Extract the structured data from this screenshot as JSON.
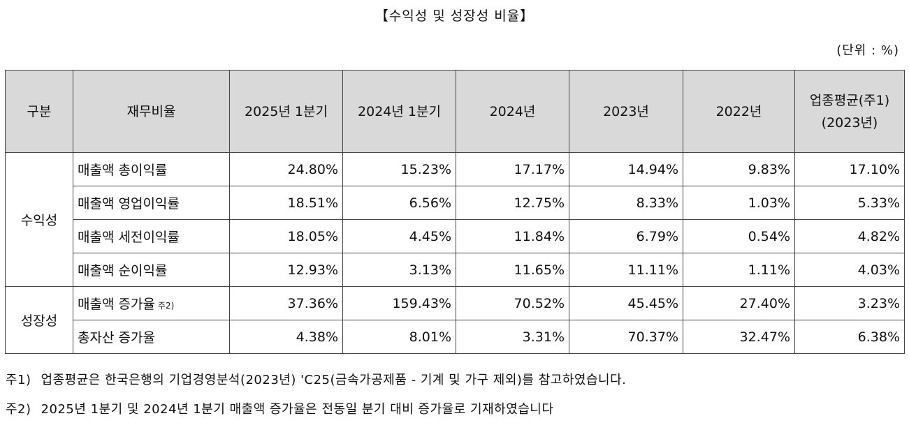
{
  "title": "【수익성 및 성장성 비율】",
  "unit": "(단위 : %)",
  "table": {
    "headers": {
      "group": "구분",
      "item": "재무비율",
      "cols": [
        "2025년 1분기",
        "2024년 1분기",
        "2024년",
        "2023년",
        "2022년"
      ],
      "industry_line1": "업종평균(주1)",
      "industry_line2": "(2023년)"
    },
    "groups": [
      {
        "name": "수익성",
        "rows": [
          {
            "label": "매출액 총이익률",
            "note": "",
            "values": [
              "24.80%",
              "15.23%",
              "17.17%",
              "14.94%",
              "9.83%",
              "17.10%"
            ]
          },
          {
            "label": "매출액 영업이익률",
            "note": "",
            "values": [
              "18.51%",
              "6.56%",
              "12.75%",
              "8.33%",
              "1.03%",
              "5.33%"
            ]
          },
          {
            "label": "매출액 세전이익률",
            "note": "",
            "values": [
              "18.05%",
              "4.45%",
              "11.84%",
              "6.79%",
              "0.54%",
              "4.82%"
            ]
          },
          {
            "label": "매출액 순이익률",
            "note": "",
            "values": [
              "12.93%",
              "3.13%",
              "11.65%",
              "11.11%",
              "1.11%",
              "4.03%"
            ]
          }
        ]
      },
      {
        "name": "성장성",
        "rows": [
          {
            "label": "매출액 증가율",
            "note": "주2)",
            "values": [
              "37.36%",
              "159.43%",
              "70.52%",
              "45.45%",
              "27.40%",
              "3.23%"
            ]
          },
          {
            "label": "총자산 증가율",
            "note": "",
            "values": [
              "4.38%",
              "8.01%",
              "3.31%",
              "70.37%",
              "32.47%",
              "6.38%"
            ]
          }
        ]
      }
    ]
  },
  "notes": [
    {
      "label": "주1)",
      "text": "업종평균은 한국은행의 기업경영분석(2023년) 'C25(금속가공제품 - 기계 및 가구 제외)를 참고하였습니다."
    },
    {
      "label": "주2)",
      "text": "2025년 1분기 및 2024년 1분기 매출액 증가율은 전동일 분기 대비 증가율로 기재하였습니다"
    }
  ]
}
